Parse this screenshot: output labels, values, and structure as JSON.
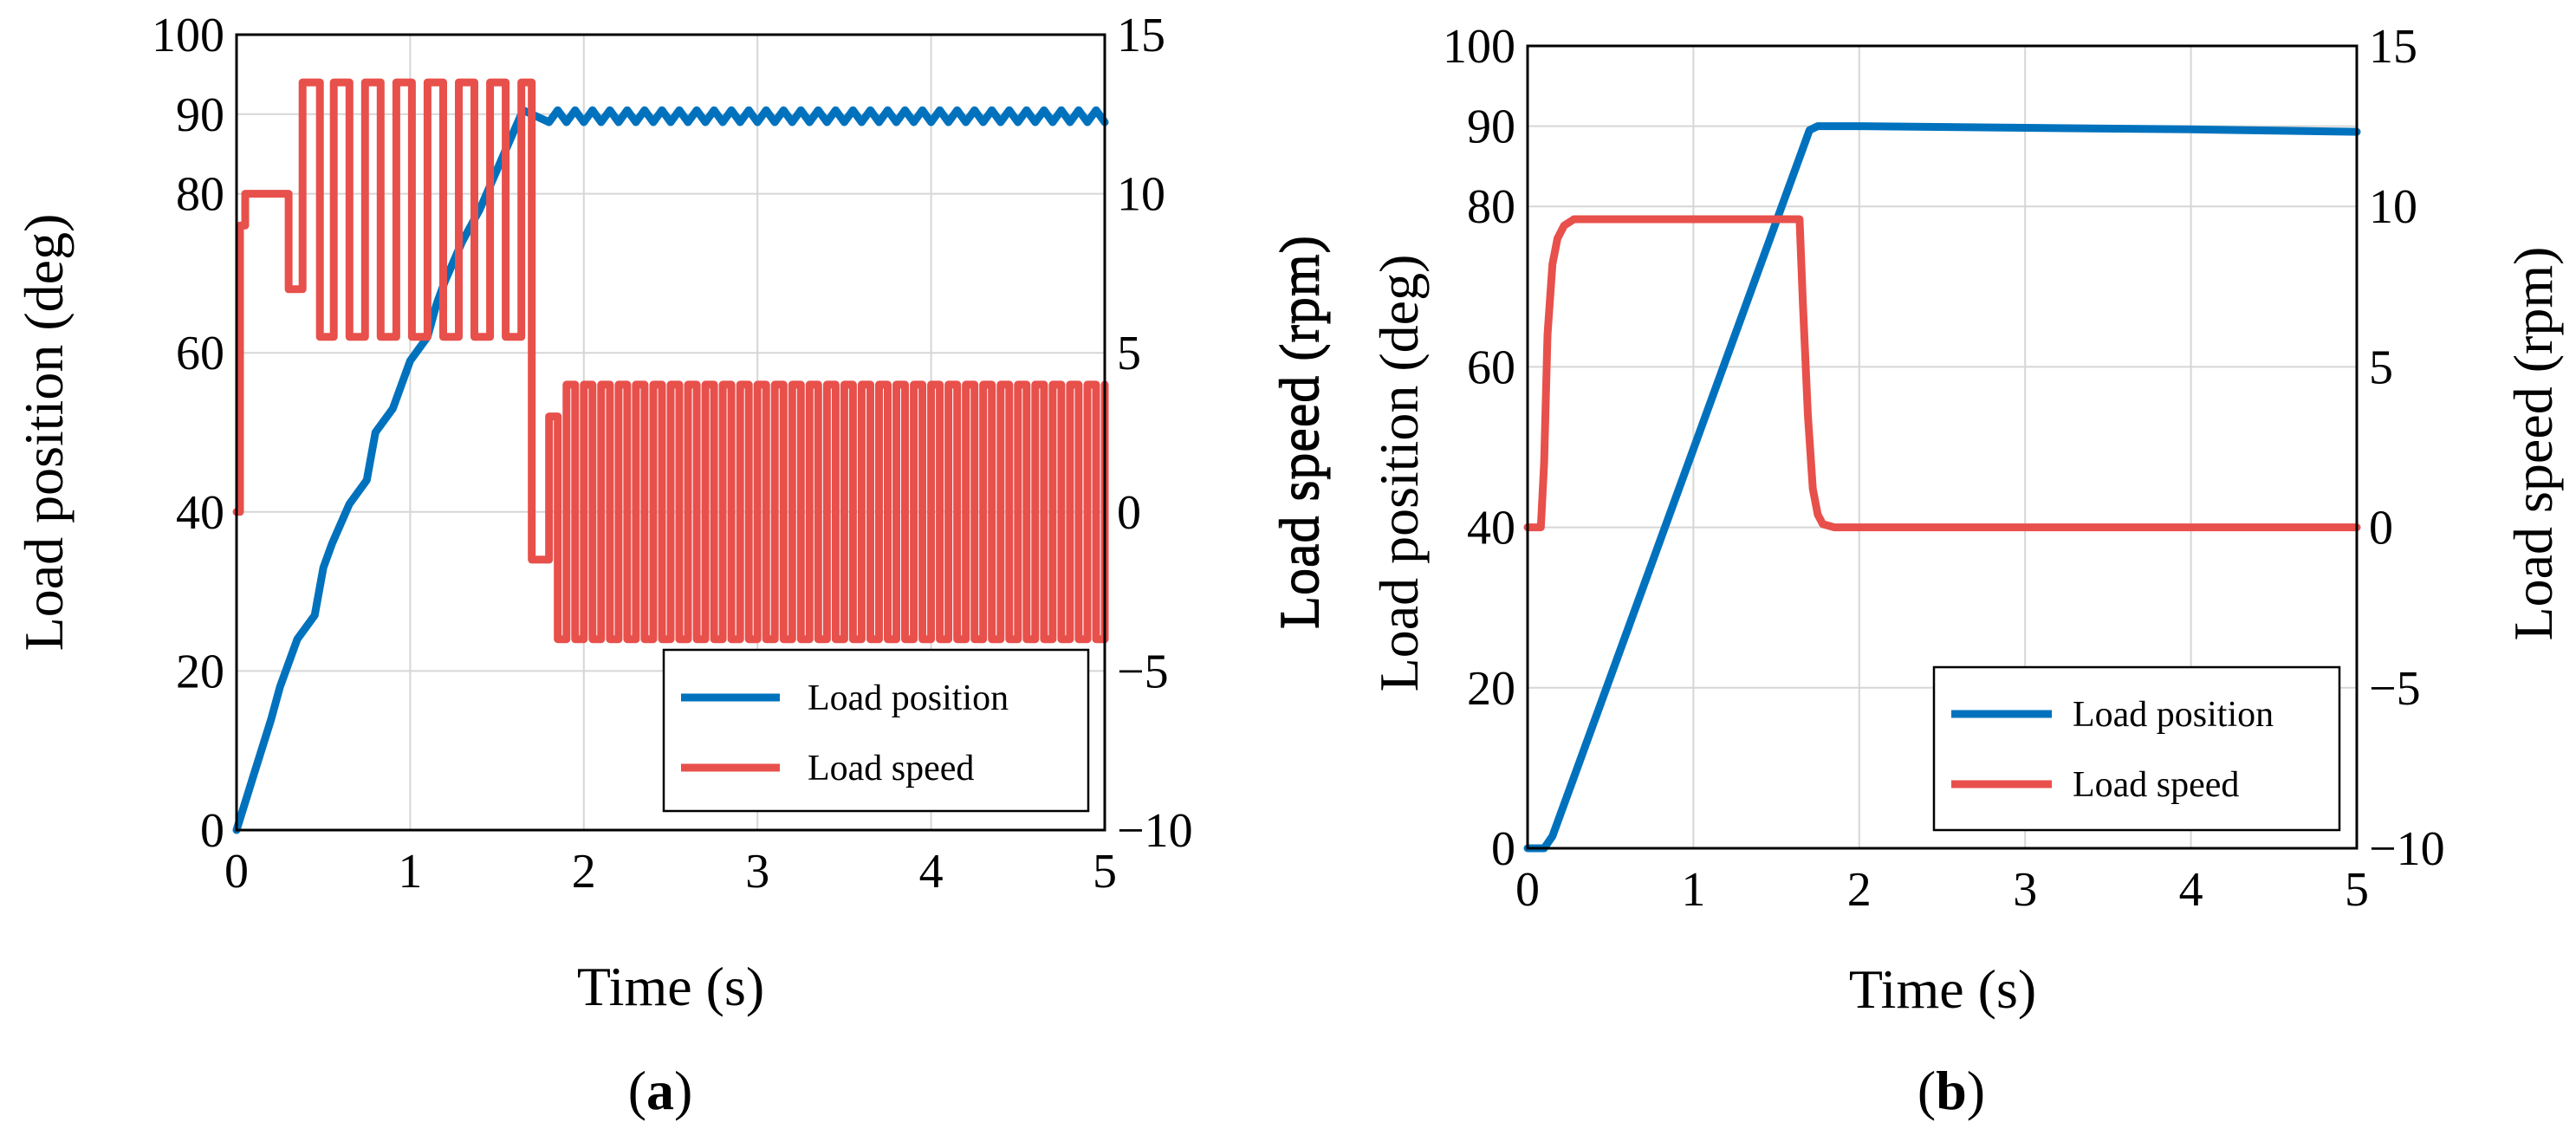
{
  "colors": {
    "position": "#0072BD",
    "speed": "#E8504B",
    "grid": "#d6d6d6"
  },
  "chart_data": [
    {
      "type": "line",
      "caption_letter": "a",
      "caption_open": "(",
      "caption_close": ")",
      "xlabel": "Time (s)",
      "ylabel_left": "Load position (deg)",
      "ylabel_right": "Load speed (rpm)",
      "xlim": [
        0,
        5
      ],
      "ylim_left": [
        0,
        100
      ],
      "ylim_right": [
        -10,
        15
      ],
      "xticks": [
        "0",
        "1",
        "2",
        "3",
        "4",
        "5"
      ],
      "yticks_left": [
        "0",
        "20",
        "40",
        "60",
        "80",
        "90",
        "100"
      ],
      "yticks_right": [
        "−10",
        "−5",
        "0",
        "5",
        "10",
        "15"
      ],
      "legend": {
        "position": "bottom-right",
        "entries": [
          "Load position",
          "Load speed"
        ]
      },
      "series": [
        {
          "name": "Load position",
          "axis": "left",
          "x": [
            0,
            0.1,
            0.2,
            0.25,
            0.35,
            0.45,
            0.5,
            0.55,
            0.65,
            0.75,
            0.8,
            0.9,
            1.0,
            1.1,
            1.15,
            1.2,
            1.3,
            1.4,
            1.5,
            1.6,
            1.65,
            1.7,
            1.8,
            1.85,
            1.9,
            1.95,
            2.0,
            2.05,
            2.1,
            2.15,
            2.2,
            2.25,
            2.3,
            2.35,
            2.4,
            2.45,
            2.5,
            2.55,
            2.6,
            2.65,
            2.7,
            2.75,
            2.8,
            2.85,
            2.9,
            2.95,
            3.0,
            3.05,
            3.1,
            3.15,
            3.2,
            3.25,
            3.3,
            3.35,
            3.4,
            3.45,
            3.5,
            3.55,
            3.6,
            3.65,
            3.7,
            3.75,
            3.8,
            3.85,
            3.9,
            3.95,
            4.0,
            4.05,
            4.1,
            4.15,
            4.2,
            4.25,
            4.3,
            4.35,
            4.4,
            4.45,
            4.5,
            4.55,
            4.6,
            4.65,
            4.7,
            4.75,
            4.8,
            4.85,
            4.9,
            4.95,
            5.0
          ],
          "values": [
            0,
            7,
            14,
            18,
            24,
            27,
            33,
            36,
            41,
            44,
            50,
            53,
            59,
            62,
            66,
            69,
            74,
            78,
            83,
            88,
            90.5,
            90,
            89,
            90.5,
            89,
            90.5,
            89,
            90.5,
            89,
            90.5,
            89,
            90.5,
            89,
            90.5,
            89,
            90.5,
            89,
            90.5,
            89,
            90.5,
            89,
            90.5,
            89,
            90.5,
            89,
            90.5,
            89,
            90.5,
            89,
            90.5,
            89,
            90.5,
            89,
            90.5,
            89,
            90.5,
            89,
            90.5,
            89,
            90.5,
            89,
            90.5,
            89,
            90.5,
            89,
            90.5,
            89,
            90.5,
            89,
            90.5,
            89,
            90.5,
            89,
            90.5,
            89,
            90.5,
            89,
            90.5,
            89,
            90.5,
            89,
            90.5,
            89,
            90.5,
            89,
            90.5,
            89
          ]
        },
        {
          "name": "Load speed",
          "axis": "right",
          "step": true,
          "x": [
            0,
            0.02,
            0.05,
            0.08,
            0.3,
            0.38,
            0.48,
            0.56,
            0.65,
            0.74,
            0.83,
            0.92,
            1.01,
            1.1,
            1.19,
            1.28,
            1.37,
            1.46,
            1.55,
            1.64,
            1.7,
            1.8,
            1.85,
            1.9,
            1.95,
            2.0,
            2.05,
            2.1,
            2.15,
            2.2,
            2.25,
            2.3,
            2.35,
            2.4,
            2.45,
            2.5,
            2.55,
            2.6,
            2.65,
            2.7,
            2.75,
            2.8,
            2.85,
            2.9,
            2.95,
            3.0,
            3.05,
            3.1,
            3.15,
            3.2,
            3.25,
            3.3,
            3.35,
            3.4,
            3.45,
            3.5,
            3.55,
            3.6,
            3.65,
            3.7,
            3.75,
            3.8,
            3.85,
            3.9,
            3.95,
            4.0,
            4.05,
            4.1,
            4.15,
            4.2,
            4.25,
            4.3,
            4.35,
            4.4,
            4.45,
            4.5,
            4.55,
            4.6,
            4.65,
            4.7,
            4.75,
            4.8,
            4.85,
            4.9,
            4.95,
            5.0
          ],
          "values": [
            0,
            9,
            10,
            10,
            7,
            13.5,
            5.5,
            13.5,
            5.5,
            13.5,
            5.5,
            13.5,
            5.5,
            13.5,
            5.5,
            13.5,
            5.5,
            13.5,
            5.5,
            13.5,
            -1.5,
            3,
            -4,
            4,
            -4,
            4,
            -4,
            4,
            -4,
            4,
            -4,
            4,
            -4,
            4,
            -4,
            4,
            -4,
            4,
            -4,
            4,
            -4,
            4,
            -4,
            4,
            -4,
            4,
            -4,
            4,
            -4,
            4,
            -4,
            4,
            -4,
            4,
            -4,
            4,
            -4,
            4,
            -4,
            4,
            -4,
            4,
            -4,
            4,
            -4,
            4,
            -4,
            4,
            -4,
            4,
            -4,
            4,
            -4,
            4,
            -4,
            4,
            -4,
            4,
            -4,
            4,
            -4,
            4,
            -4,
            4,
            -4,
            4
          ]
        }
      ]
    },
    {
      "type": "line",
      "caption_letter": "b",
      "caption_open": "(",
      "caption_close": ")",
      "xlabel": "Time (s)",
      "ylabel_left": "Load position (deg)",
      "ylabel_right": "Load speed (rpm)",
      "ylabel_extra": "Load speed (rpm)",
      "xlim": [
        0,
        5
      ],
      "ylim_left": [
        0,
        100
      ],
      "ylim_right": [
        -10,
        15
      ],
      "xticks": [
        "0",
        "1",
        "2",
        "3",
        "4",
        "5"
      ],
      "yticks_left": [
        "0",
        "20",
        "40",
        "60",
        "80",
        "90",
        "100"
      ],
      "yticks_right": [
        "−10",
        "−5",
        "0",
        "5",
        "10",
        "15"
      ],
      "legend": {
        "position": "bottom-right",
        "entries": [
          "Load position",
          "Load speed"
        ]
      },
      "series": [
        {
          "name": "Load position",
          "axis": "left",
          "x": [
            0,
            0.1,
            0.15,
            1.7,
            1.75,
            2.0,
            3.0,
            4.0,
            5.0
          ],
          "values": [
            0,
            0,
            1.5,
            89.5,
            90,
            90,
            89.8,
            89.6,
            89.3
          ]
        },
        {
          "name": "Load speed",
          "axis": "right",
          "x": [
            0,
            0.08,
            0.1,
            0.12,
            0.15,
            0.18,
            0.22,
            0.28,
            0.35,
            1.64,
            1.66,
            1.69,
            1.72,
            1.75,
            1.78,
            1.85,
            5.0
          ],
          "values": [
            0,
            0,
            2,
            6,
            8.2,
            9,
            9.4,
            9.6,
            9.6,
            9.6,
            7,
            3.5,
            1.2,
            0.4,
            0.1,
            0,
            0
          ]
        }
      ]
    }
  ]
}
